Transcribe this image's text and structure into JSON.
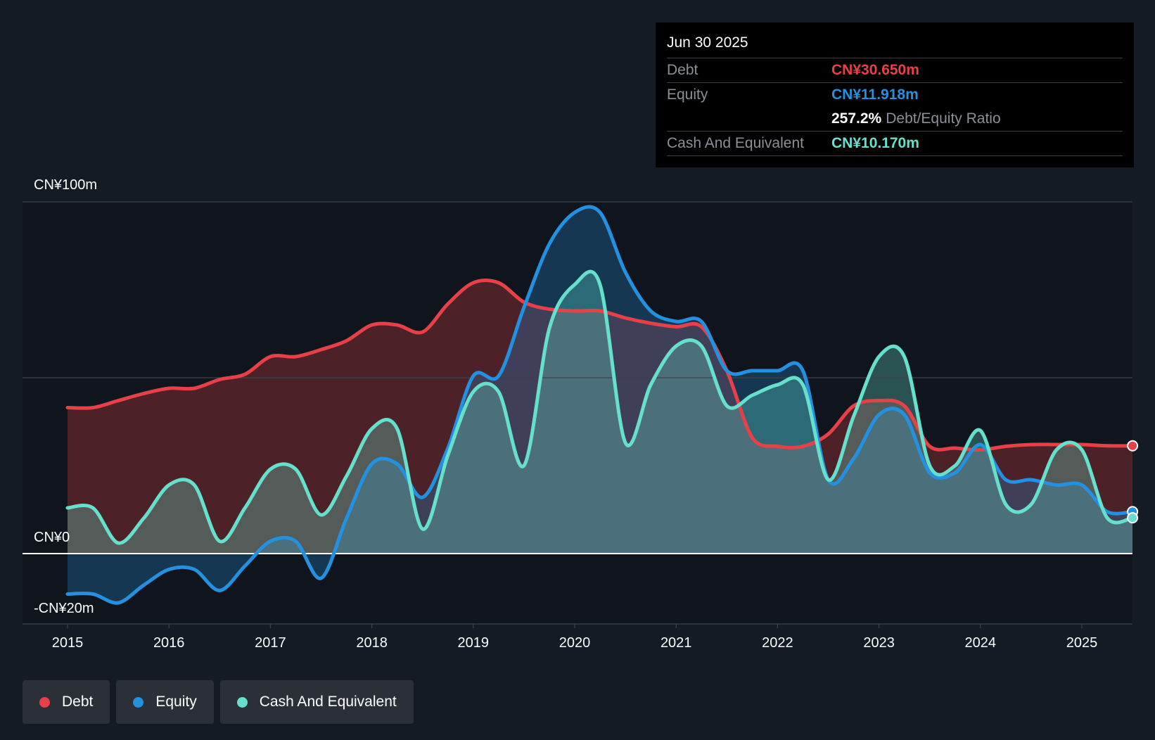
{
  "chart_data": {
    "type": "area",
    "x_ticks": [
      "2015",
      "2016",
      "2017",
      "2018",
      "2019",
      "2020",
      "2021",
      "2022",
      "2023",
      "2024",
      "2025"
    ],
    "y_ticks": [
      "CN¥100m",
      "CN¥0",
      "-CN¥20m"
    ],
    "ylim": [
      -20,
      100
    ],
    "grid": "horizontal",
    "legend_position": "bottom-left",
    "series": [
      {
        "name": "Debt",
        "color": "#e84048",
        "points": [
          [
            2015.0,
            41.5
          ],
          [
            2015.25,
            41.5
          ],
          [
            2015.5,
            43.5
          ],
          [
            2015.75,
            45.5
          ],
          [
            2016.0,
            47
          ],
          [
            2016.25,
            47
          ],
          [
            2016.5,
            49.5
          ],
          [
            2016.75,
            51
          ],
          [
            2017.0,
            56
          ],
          [
            2017.25,
            56
          ],
          [
            2017.5,
            58
          ],
          [
            2017.75,
            60.5
          ],
          [
            2018.0,
            65
          ],
          [
            2018.25,
            65
          ],
          [
            2018.5,
            63
          ],
          [
            2018.75,
            71
          ],
          [
            2019.0,
            77
          ],
          [
            2019.25,
            77
          ],
          [
            2019.5,
            71.5
          ],
          [
            2019.75,
            69.5
          ],
          [
            2020.0,
            69
          ],
          [
            2020.25,
            69
          ],
          [
            2020.5,
            67
          ],
          [
            2020.75,
            65.5
          ],
          [
            2021.0,
            64.5
          ],
          [
            2021.25,
            64.5
          ],
          [
            2021.5,
            52
          ],
          [
            2021.75,
            33
          ],
          [
            2022.0,
            30.5
          ],
          [
            2022.25,
            30.5
          ],
          [
            2022.5,
            34
          ],
          [
            2022.75,
            42
          ],
          [
            2023.0,
            43.5
          ],
          [
            2023.25,
            42
          ],
          [
            2023.5,
            30.5
          ],
          [
            2023.75,
            30
          ],
          [
            2024.0,
            29.5
          ],
          [
            2024.25,
            30.5
          ],
          [
            2024.5,
            31
          ],
          [
            2024.75,
            31
          ],
          [
            2025.0,
            31
          ],
          [
            2025.25,
            30.65
          ],
          [
            2025.5,
            30.65
          ]
        ]
      },
      {
        "name": "Equity",
        "color": "#2390e0",
        "points": [
          [
            2015.0,
            -11.5
          ],
          [
            2015.25,
            -11.5
          ],
          [
            2015.5,
            -14
          ],
          [
            2015.75,
            -9
          ],
          [
            2016.0,
            -4.5
          ],
          [
            2016.25,
            -4.5
          ],
          [
            2016.5,
            -10.5
          ],
          [
            2016.75,
            -3.5
          ],
          [
            2017.0,
            3.5
          ],
          [
            2017.25,
            3.5
          ],
          [
            2017.5,
            -7
          ],
          [
            2017.75,
            10
          ],
          [
            2018.0,
            25.5
          ],
          [
            2018.25,
            25.5
          ],
          [
            2018.5,
            16
          ],
          [
            2018.75,
            30
          ],
          [
            2019.0,
            50.5
          ],
          [
            2019.25,
            50.5
          ],
          [
            2019.5,
            70
          ],
          [
            2019.75,
            88
          ],
          [
            2020.0,
            97
          ],
          [
            2020.25,
            97
          ],
          [
            2020.5,
            80
          ],
          [
            2020.75,
            69
          ],
          [
            2021.0,
            66
          ],
          [
            2021.25,
            66
          ],
          [
            2021.5,
            52
          ],
          [
            2021.75,
            52
          ],
          [
            2022.0,
            52
          ],
          [
            2022.25,
            52
          ],
          [
            2022.5,
            21
          ],
          [
            2022.75,
            27
          ],
          [
            2023.0,
            39.5
          ],
          [
            2023.25,
            39.5
          ],
          [
            2023.5,
            23
          ],
          [
            2023.75,
            23
          ],
          [
            2024.0,
            31
          ],
          [
            2024.25,
            21
          ],
          [
            2024.5,
            21
          ],
          [
            2024.75,
            19.5
          ],
          [
            2025.0,
            19.5
          ],
          [
            2025.25,
            11.918
          ],
          [
            2025.5,
            11.918
          ]
        ]
      },
      {
        "name": "Cash And Equivalent",
        "color": "#66e0cc",
        "points": [
          [
            2015.0,
            13
          ],
          [
            2015.25,
            13
          ],
          [
            2015.5,
            3
          ],
          [
            2015.75,
            10
          ],
          [
            2016.0,
            19.5
          ],
          [
            2016.25,
            19.5
          ],
          [
            2016.5,
            3.5
          ],
          [
            2016.75,
            13
          ],
          [
            2017.0,
            24
          ],
          [
            2017.25,
            24
          ],
          [
            2017.5,
            11
          ],
          [
            2017.75,
            22
          ],
          [
            2018.0,
            35.5
          ],
          [
            2018.25,
            35.5
          ],
          [
            2018.5,
            7
          ],
          [
            2018.75,
            28
          ],
          [
            2019.0,
            46
          ],
          [
            2019.25,
            46
          ],
          [
            2019.5,
            25
          ],
          [
            2019.75,
            64
          ],
          [
            2020.0,
            76.5
          ],
          [
            2020.25,
            76.5
          ],
          [
            2020.5,
            31.5
          ],
          [
            2020.75,
            48
          ],
          [
            2021.0,
            59
          ],
          [
            2021.25,
            59
          ],
          [
            2021.5,
            42
          ],
          [
            2021.75,
            45
          ],
          [
            2022.0,
            48
          ],
          [
            2022.25,
            48
          ],
          [
            2022.5,
            21
          ],
          [
            2022.75,
            39
          ],
          [
            2023.0,
            56
          ],
          [
            2023.25,
            56
          ],
          [
            2023.5,
            25
          ],
          [
            2023.75,
            25
          ],
          [
            2024.0,
            35
          ],
          [
            2024.25,
            14
          ],
          [
            2024.5,
            14
          ],
          [
            2024.75,
            29.5
          ],
          [
            2025.0,
            29.5
          ],
          [
            2025.25,
            10.17
          ],
          [
            2025.5,
            10.17
          ]
        ]
      }
    ]
  },
  "tooltip": {
    "date": "Jun 30 2025",
    "debt_label": "Debt",
    "debt_value": "CN¥30.650m",
    "equity_label": "Equity",
    "equity_value": "CN¥11.918m",
    "ratio_value": "257.2%",
    "ratio_label": "Debt/Equity Ratio",
    "cash_label": "Cash And Equivalent",
    "cash_value": "CN¥10.170m"
  },
  "legend": [
    {
      "label": "Debt",
      "color": "#e84048"
    },
    {
      "label": "Equity",
      "color": "#2390e0"
    },
    {
      "label": "Cash And Equivalent",
      "color": "#66e0cc"
    }
  ],
  "colors": {
    "background": "#151b24",
    "plot_background": "#10151d",
    "zero_line": "#ffffff",
    "grid": "#3c424c"
  }
}
